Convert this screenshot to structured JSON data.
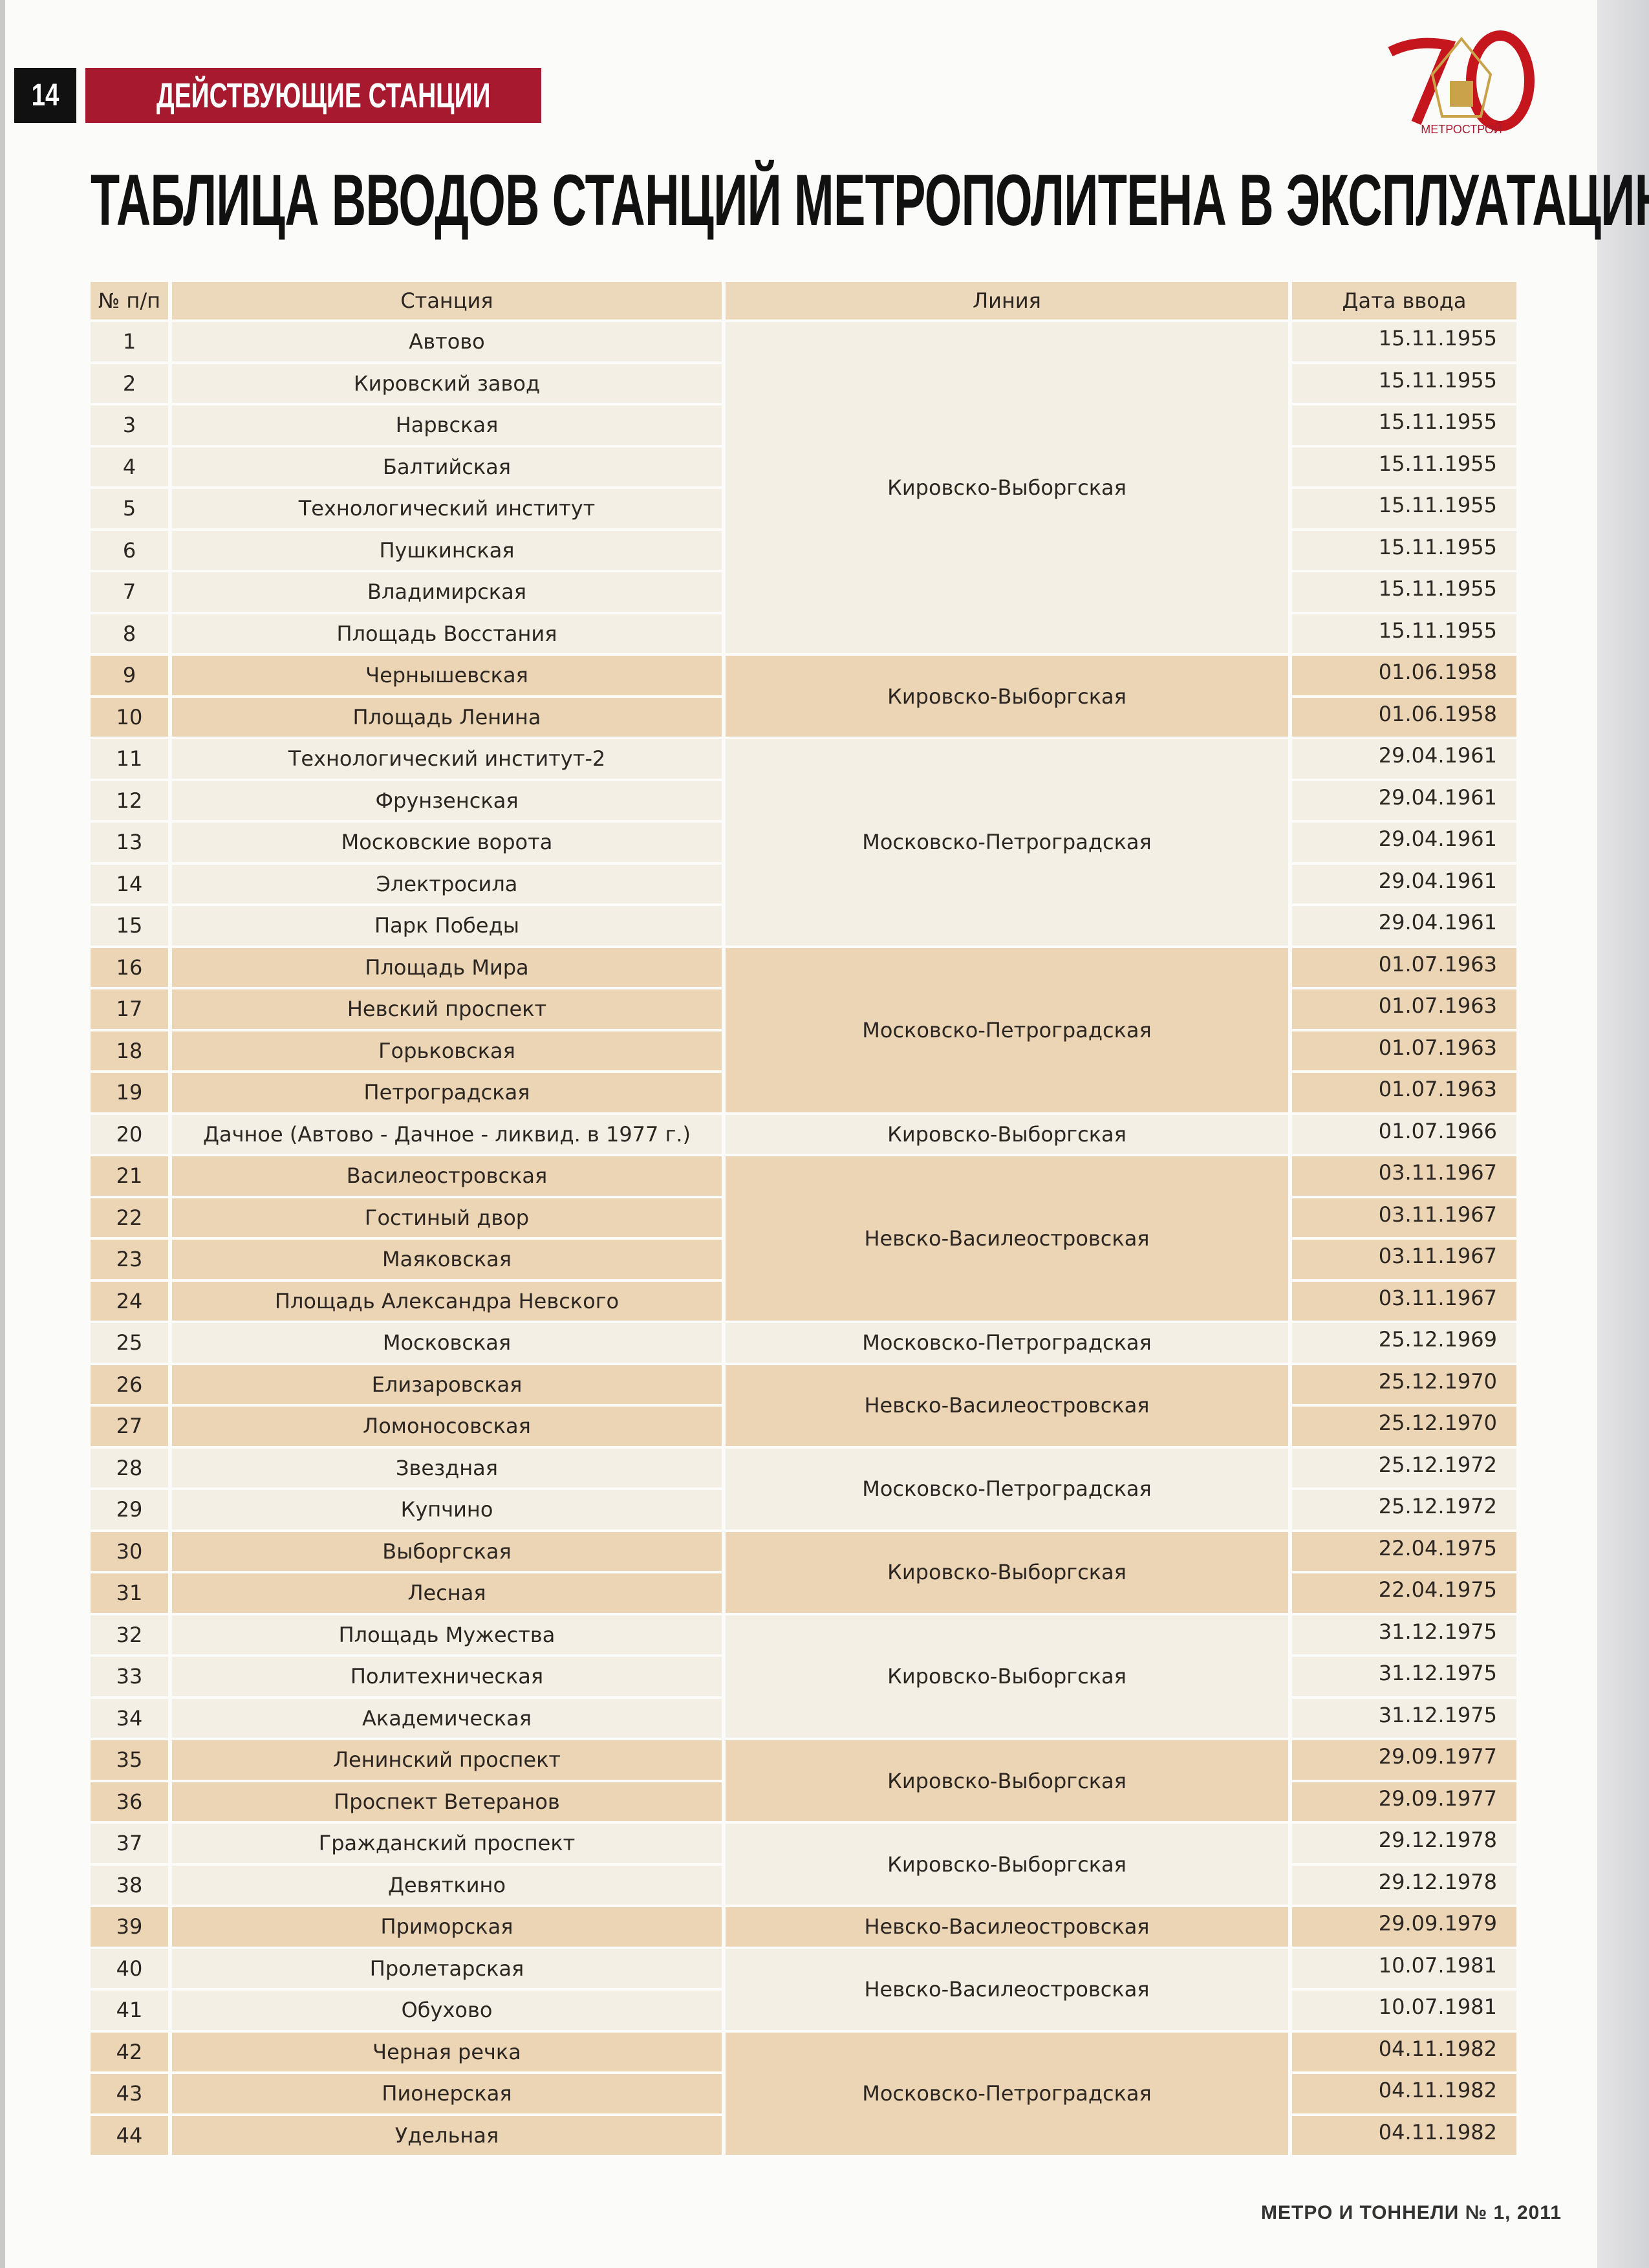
{
  "header": {
    "page_number": "14",
    "section": "ДЕЙСТВУЮЩИЕ СТАНЦИИ",
    "logo_text": "70 МЕТРОСТРОЙ",
    "accent_color": "#a6192e"
  },
  "title": "ТАБЛИЦА ВВОДОВ СТАНЦИЙ МЕТРОПОЛИТЕНА В ЭКСПЛУАТАЦИЮ",
  "table": {
    "columns": [
      "№ п/п",
      "Станция",
      "Линия",
      "Дата ввода"
    ],
    "colors": {
      "light": "#f4efe4",
      "dark": "#ecd5b4"
    },
    "groups": [
      {
        "line": "Кировско-Выборгская",
        "rows": [
          {
            "n": "1",
            "station": "Автово",
            "date": "15.11.1955"
          },
          {
            "n": "2",
            "station": "Кировский завод",
            "date": "15.11.1955"
          },
          {
            "n": "3",
            "station": "Нарвская",
            "date": "15.11.1955"
          },
          {
            "n": "4",
            "station": "Балтийская",
            "date": "15.11.1955"
          },
          {
            "n": "5",
            "station": "Технологический институт",
            "date": "15.11.1955"
          },
          {
            "n": "6",
            "station": "Пушкинская",
            "date": "15.11.1955"
          },
          {
            "n": "7",
            "station": "Владимирская",
            "date": "15.11.1955"
          },
          {
            "n": "8",
            "station": "Площадь Восстания",
            "date": "15.11.1955"
          }
        ]
      },
      {
        "line": "Кировско-Выборгская",
        "rows": [
          {
            "n": "9",
            "station": "Чернышевская",
            "date": "01.06.1958"
          },
          {
            "n": "10",
            "station": "Площадь Ленина",
            "date": "01.06.1958"
          }
        ]
      },
      {
        "line": "Московско-Петроградская",
        "rows": [
          {
            "n": "11",
            "station": "Технологический институт-2",
            "date": "29.04.1961"
          },
          {
            "n": "12",
            "station": "Фрунзенская",
            "date": "29.04.1961"
          },
          {
            "n": "13",
            "station": "Московские ворота",
            "date": "29.04.1961"
          },
          {
            "n": "14",
            "station": "Электросила",
            "date": "29.04.1961"
          },
          {
            "n": "15",
            "station": "Парк Победы",
            "date": "29.04.1961"
          }
        ]
      },
      {
        "line": "Московско-Петроградская",
        "rows": [
          {
            "n": "16",
            "station": "Площадь Мира",
            "date": "01.07.1963"
          },
          {
            "n": "17",
            "station": "Невский проспект",
            "date": "01.07.1963"
          },
          {
            "n": "18",
            "station": "Горьковская",
            "date": "01.07.1963"
          },
          {
            "n": "19",
            "station": "Петроградская",
            "date": "01.07.1963"
          }
        ]
      },
      {
        "line": "Кировско-Выборгская",
        "rows": [
          {
            "n": "20",
            "station": "Дачное (Автово - Дачное - ликвид. в 1977 г.)",
            "date": "01.07.1966"
          }
        ]
      },
      {
        "line": "Невско-Василеостровская",
        "rows": [
          {
            "n": "21",
            "station": "Василеостровская",
            "date": "03.11.1967"
          },
          {
            "n": "22",
            "station": "Гостиный двор",
            "date": "03.11.1967"
          },
          {
            "n": "23",
            "station": "Маяковская",
            "date": "03.11.1967"
          },
          {
            "n": "24",
            "station": "Площадь Александра Невского",
            "date": "03.11.1967"
          }
        ]
      },
      {
        "line": "Московско-Петроградская",
        "rows": [
          {
            "n": "25",
            "station": "Московская",
            "date": "25.12.1969"
          }
        ]
      },
      {
        "line": "Невско-Василеостровская",
        "rows": [
          {
            "n": "26",
            "station": "Елизаровская",
            "date": "25.12.1970"
          },
          {
            "n": "27",
            "station": "Ломоносовская",
            "date": "25.12.1970"
          }
        ]
      },
      {
        "line": "Московско-Петроградская",
        "rows": [
          {
            "n": "28",
            "station": "Звездная",
            "date": "25.12.1972"
          },
          {
            "n": "29",
            "station": "Купчино",
            "date": "25.12.1972"
          }
        ]
      },
      {
        "line": "Кировско-Выборгская",
        "rows": [
          {
            "n": "30",
            "station": "Выборгская",
            "date": "22.04.1975"
          },
          {
            "n": "31",
            "station": "Лесная",
            "date": "22.04.1975"
          }
        ]
      },
      {
        "line": "Кировско-Выборгская",
        "rows": [
          {
            "n": "32",
            "station": "Площадь Мужества",
            "date": "31.12.1975"
          },
          {
            "n": "33",
            "station": "Политехническая",
            "date": "31.12.1975"
          },
          {
            "n": "34",
            "station": "Академическая",
            "date": "31.12.1975"
          }
        ]
      },
      {
        "line": "Кировско-Выборгская",
        "rows": [
          {
            "n": "35",
            "station": "Ленинский проспект",
            "date": "29.09.1977"
          },
          {
            "n": "36",
            "station": "Проспект Ветеранов",
            "date": "29.09.1977"
          }
        ]
      },
      {
        "line": "Кировско-Выборгская",
        "rows": [
          {
            "n": "37",
            "station": "Гражданский проспект",
            "date": "29.12.1978"
          },
          {
            "n": "38",
            "station": "Девяткино",
            "date": "29.12.1978"
          }
        ]
      },
      {
        "line": "Невско-Василеостровская",
        "rows": [
          {
            "n": "39",
            "station": "Приморская",
            "date": "29.09.1979"
          }
        ]
      },
      {
        "line": "Невско-Василеостровская",
        "rows": [
          {
            "n": "40",
            "station": "Пролетарская",
            "date": "10.07.1981"
          },
          {
            "n": "41",
            "station": "Обухово",
            "date": "10.07.1981"
          }
        ]
      },
      {
        "line": "Московско-Петроградская",
        "rows": [
          {
            "n": "42",
            "station": "Черная речка",
            "date": "04.11.1982"
          },
          {
            "n": "43",
            "station": "Пионерская",
            "date": "04.11.1982"
          },
          {
            "n": "44",
            "station": "Удельная",
            "date": "04.11.1982"
          }
        ]
      }
    ]
  },
  "footer": "МЕТРО И ТОННЕЛИ № 1, 2011"
}
